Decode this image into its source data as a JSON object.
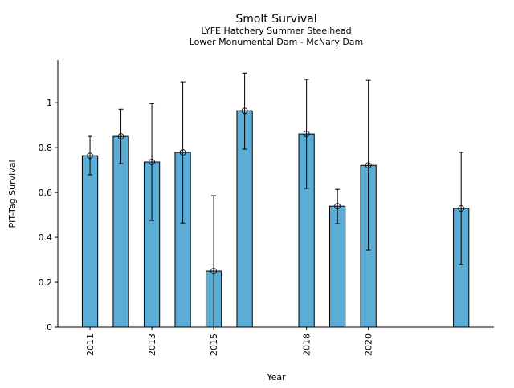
{
  "chart_data": {
    "type": "bar",
    "title": "Smolt Survival",
    "subtitle": [
      "LYFE Hatchery Summer Steelhead",
      "Lower Monumental Dam - McNary Dam"
    ],
    "xlabel": "Year",
    "ylabel": "PIT-Tag Survival",
    "x": [
      2011,
      2012,
      2013,
      2014,
      2015,
      2016,
      2018,
      2019,
      2020,
      2023
    ],
    "values": [
      0.764,
      0.85,
      0.736,
      0.779,
      0.25,
      0.964,
      0.861,
      0.539,
      0.721,
      0.529
    ],
    "error_upper": [
      0.85,
      0.971,
      0.996,
      1.093,
      0.586,
      1.132,
      1.104,
      0.614,
      1.1,
      0.779
    ],
    "error_lower": [
      0.679,
      0.729,
      0.475,
      0.464,
      0.0,
      0.793,
      0.618,
      0.461,
      0.343,
      0.279
    ],
    "xticks": [
      "2011",
      "2013",
      "2015",
      "2018",
      "2020"
    ],
    "yticks": [
      "0",
      "0.2",
      "0.4",
      "0.6",
      "0.8",
      "1"
    ],
    "xlim": [
      2009.96,
      2024.06
    ],
    "ylim": [
      0,
      1.19
    ],
    "grid": false,
    "bar_color": "#5badd6",
    "edge_color": "#000000"
  }
}
